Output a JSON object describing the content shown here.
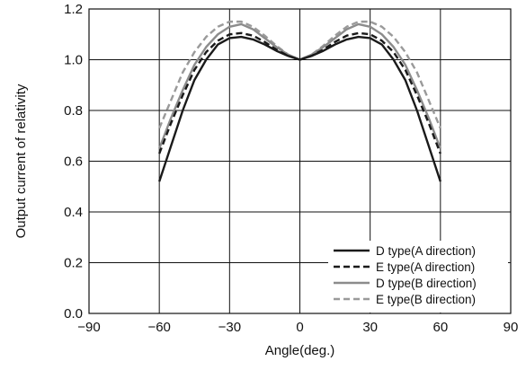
{
  "chart_data": {
    "type": "line",
    "title": "",
    "xlabel": "Angle(deg.)",
    "ylabel": "Output current of relativity",
    "xlim": [
      -90,
      90
    ],
    "ylim": [
      0,
      1.2
    ],
    "x_ticks": [
      -90,
      -60,
      -30,
      0,
      30,
      60,
      90
    ],
    "x_tick_labels": [
      "−90",
      "−60",
      "−30",
      "0",
      "30",
      "60",
      "90"
    ],
    "y_ticks": [
      0,
      0.2,
      0.4,
      0.6,
      0.8,
      1.0,
      1.2
    ],
    "y_tick_labels": [
      "0.0",
      "0.2",
      "0.4",
      "0.6",
      "0.8",
      "1.0",
      "1.2"
    ],
    "grid": true,
    "legend_position": "bottom-right",
    "x": [
      -60,
      -55,
      -50,
      -45,
      -40,
      -35,
      -30,
      -25,
      -20,
      -15,
      -10,
      -5,
      0,
      5,
      10,
      15,
      20,
      25,
      30,
      35,
      40,
      45,
      50,
      55,
      60
    ],
    "series": [
      {
        "name": "D type(A direction)",
        "color": "#1a1a1a",
        "dash": "solid",
        "values": [
          0.52,
          0.66,
          0.8,
          0.92,
          1.0,
          1.06,
          1.085,
          1.09,
          1.08,
          1.06,
          1.035,
          1.015,
          1.0,
          1.015,
          1.035,
          1.06,
          1.08,
          1.09,
          1.085,
          1.06,
          1.0,
          0.92,
          0.8,
          0.66,
          0.52
        ]
      },
      {
        "name": "E type(A direction)",
        "color": "#1a1a1a",
        "dash": "dashed",
        "values": [
          0.63,
          0.75,
          0.86,
          0.96,
          1.03,
          1.075,
          1.1,
          1.105,
          1.095,
          1.07,
          1.04,
          1.015,
          1.0,
          1.015,
          1.04,
          1.07,
          1.095,
          1.105,
          1.1,
          1.075,
          1.03,
          0.96,
          0.86,
          0.75,
          0.63
        ]
      },
      {
        "name": "D type(B direction)",
        "color": "#8c8c8c",
        "dash": "solid",
        "values": [
          0.65,
          0.77,
          0.88,
          0.98,
          1.05,
          1.1,
          1.13,
          1.14,
          1.12,
          1.085,
          1.05,
          1.02,
          1.0,
          1.02,
          1.05,
          1.085,
          1.12,
          1.14,
          1.13,
          1.1,
          1.05,
          0.98,
          0.88,
          0.77,
          0.65
        ]
      },
      {
        "name": "E type(B direction)",
        "color": "#9a9a9a",
        "dash": "dashed",
        "values": [
          0.73,
          0.84,
          0.95,
          1.03,
          1.09,
          1.13,
          1.15,
          1.15,
          1.13,
          1.095,
          1.055,
          1.02,
          1.0,
          1.02,
          1.055,
          1.095,
          1.13,
          1.15,
          1.15,
          1.13,
          1.09,
          1.03,
          0.95,
          0.84,
          0.73
        ]
      }
    ]
  }
}
